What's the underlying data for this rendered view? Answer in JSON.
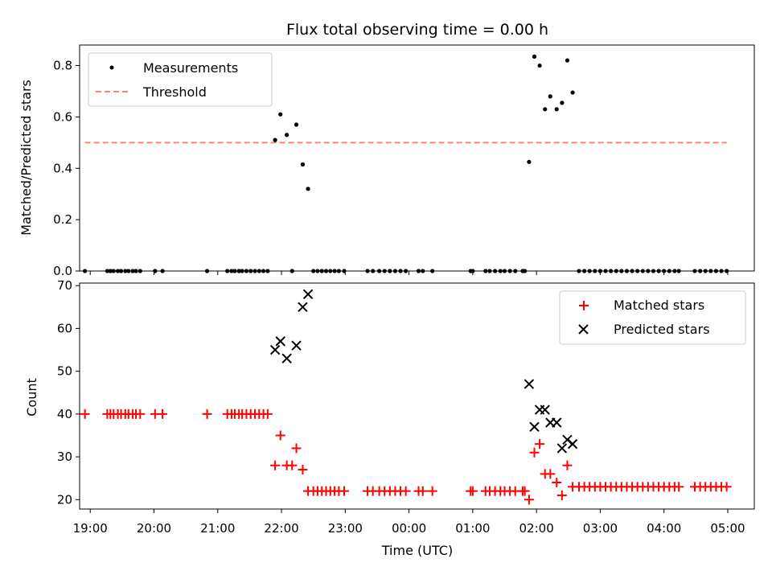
{
  "chart_data": [
    {
      "type": "scatter",
      "title": "Flux total observing time = 0.00 h",
      "ylabel": "Matched/Predicted stars",
      "xlim": [
        "18:50",
        "05:25"
      ],
      "ylim": [
        0.0,
        0.88
      ],
      "yticks": [
        "0.0",
        "0.2",
        "0.4",
        "0.6",
        "0.8"
      ],
      "legend_position": "top-left",
      "series": [
        {
          "name": "Measurements",
          "marker": "dot",
          "color": "#000000",
          "points": [
            [
              "18:55",
              0
            ],
            [
              "19:16",
              0
            ],
            [
              "19:19",
              0
            ],
            [
              "19:22",
              0
            ],
            [
              "19:26",
              0
            ],
            [
              "19:29",
              0
            ],
            [
              "19:33",
              0
            ],
            [
              "19:36",
              0
            ],
            [
              "19:40",
              0
            ],
            [
              "19:43",
              0
            ],
            [
              "19:47",
              0
            ],
            [
              "20:01",
              0
            ],
            [
              "20:08",
              0
            ],
            [
              "20:50",
              0
            ],
            [
              "21:09",
              0
            ],
            [
              "21:13",
              0
            ],
            [
              "21:16",
              0
            ],
            [
              "21:20",
              0
            ],
            [
              "21:23",
              0
            ],
            [
              "21:27",
              0
            ],
            [
              "21:31",
              0
            ],
            [
              "21:35",
              0
            ],
            [
              "21:39",
              0
            ],
            [
              "21:43",
              0
            ],
            [
              "21:47",
              0
            ],
            [
              "21:54",
              0.51
            ],
            [
              "21:59",
              0.61
            ],
            [
              "22:05",
              0.53
            ],
            [
              "22:10",
              0
            ],
            [
              "22:14",
              0.57
            ],
            [
              "22:20",
              0.415
            ],
            [
              "22:25",
              0.32
            ],
            [
              "22:30",
              0
            ],
            [
              "22:34",
              0
            ],
            [
              "22:38",
              0
            ],
            [
              "22:42",
              0
            ],
            [
              "22:46",
              0
            ],
            [
              "22:50",
              0
            ],
            [
              "22:54",
              0
            ],
            [
              "22:59",
              0
            ],
            [
              "23:21",
              0
            ],
            [
              "23:26",
              0
            ],
            [
              "23:32",
              0
            ],
            [
              "23:37",
              0
            ],
            [
              "23:42",
              0
            ],
            [
              "23:47",
              0
            ],
            [
              "23:52",
              0
            ],
            [
              "23:57",
              0
            ],
            [
              "00:09",
              0
            ],
            [
              "00:13",
              0
            ],
            [
              "00:22",
              0
            ],
            [
              "00:58",
              0
            ],
            [
              "01:00",
              0
            ],
            [
              "01:12",
              0
            ],
            [
              "01:16",
              0
            ],
            [
              "01:21",
              0
            ],
            [
              "01:26",
              0
            ],
            [
              "01:30",
              0
            ],
            [
              "01:35",
              0
            ],
            [
              "01:40",
              0
            ],
            [
              "01:47",
              0
            ],
            [
              "01:49",
              0
            ],
            [
              "01:53",
              0.425
            ],
            [
              "01:58",
              0.835
            ],
            [
              "02:03",
              0.8
            ],
            [
              "02:08",
              0.63
            ],
            [
              "02:13",
              0.68
            ],
            [
              "02:19",
              0.63
            ],
            [
              "02:24",
              0.655
            ],
            [
              "02:29",
              0.82
            ],
            [
              "02:34",
              0.695
            ],
            [
              "02:40",
              0
            ],
            [
              "02:45",
              0
            ],
            [
              "02:50",
              0
            ],
            [
              "02:55",
              0
            ],
            [
              "03:00",
              0
            ],
            [
              "03:05",
              0
            ],
            [
              "03:10",
              0
            ],
            [
              "03:15",
              0
            ],
            [
              "03:20",
              0
            ],
            [
              "03:25",
              0
            ],
            [
              "03:30",
              0
            ],
            [
              "03:35",
              0
            ],
            [
              "03:40",
              0
            ],
            [
              "03:45",
              0
            ],
            [
              "03:50",
              0
            ],
            [
              "03:55",
              0
            ],
            [
              "04:00",
              0
            ],
            [
              "04:05",
              0
            ],
            [
              "04:10",
              0
            ],
            [
              "04:14",
              0
            ],
            [
              "04:29",
              0
            ],
            [
              "04:34",
              0
            ],
            [
              "04:39",
              0
            ],
            [
              "04:44",
              0
            ],
            [
              "04:49",
              0
            ],
            [
              "04:54",
              0
            ],
            [
              "04:59",
              0
            ]
          ]
        },
        {
          "name": "Threshold",
          "marker": "dashed-line",
          "color": "#ff7f7f",
          "points": [
            [
              "18:55",
              0.5
            ],
            [
              "04:59",
              0.5
            ]
          ]
        }
      ]
    },
    {
      "type": "scatter",
      "xlabel": "Time (UTC)",
      "ylabel": "Count",
      "xlim": [
        "18:50",
        "05:25"
      ],
      "ylim": [
        17.8,
        70.6
      ],
      "yticks": [
        "20",
        "30",
        "40",
        "50",
        "60",
        "70"
      ],
      "xticks": [
        "19:00",
        "20:00",
        "21:00",
        "22:00",
        "23:00",
        "00:00",
        "01:00",
        "02:00",
        "03:00",
        "04:00",
        "05:00"
      ],
      "legend_position": "top-right",
      "series": [
        {
          "name": "Matched stars",
          "marker": "plus",
          "color": "#ff0000",
          "points": [
            [
              "18:55",
              40
            ],
            [
              "19:16",
              40
            ],
            [
              "19:19",
              40
            ],
            [
              "19:22",
              40
            ],
            [
              "19:26",
              40
            ],
            [
              "19:29",
              40
            ],
            [
              "19:33",
              40
            ],
            [
              "19:36",
              40
            ],
            [
              "19:40",
              40
            ],
            [
              "19:43",
              40
            ],
            [
              "19:47",
              40
            ],
            [
              "20:01",
              40
            ],
            [
              "20:08",
              40
            ],
            [
              "20:50",
              40
            ],
            [
              "21:09",
              40
            ],
            [
              "21:13",
              40
            ],
            [
              "21:16",
              40
            ],
            [
              "21:20",
              40
            ],
            [
              "21:23",
              40
            ],
            [
              "21:27",
              40
            ],
            [
              "21:31",
              40
            ],
            [
              "21:35",
              40
            ],
            [
              "21:39",
              40
            ],
            [
              "21:43",
              40
            ],
            [
              "21:47",
              40
            ],
            [
              "21:54",
              28
            ],
            [
              "21:59",
              35
            ],
            [
              "22:05",
              28
            ],
            [
              "22:10",
              28
            ],
            [
              "22:14",
              32
            ],
            [
              "22:20",
              27
            ],
            [
              "22:25",
              22
            ],
            [
              "22:30",
              22
            ],
            [
              "22:34",
              22
            ],
            [
              "22:38",
              22
            ],
            [
              "22:42",
              22
            ],
            [
              "22:46",
              22
            ],
            [
              "22:50",
              22
            ],
            [
              "22:54",
              22
            ],
            [
              "22:59",
              22
            ],
            [
              "23:21",
              22
            ],
            [
              "23:26",
              22
            ],
            [
              "23:32",
              22
            ],
            [
              "23:37",
              22
            ],
            [
              "23:42",
              22
            ],
            [
              "23:47",
              22
            ],
            [
              "23:52",
              22
            ],
            [
              "23:57",
              22
            ],
            [
              "00:09",
              22
            ],
            [
              "00:13",
              22
            ],
            [
              "00:22",
              22
            ],
            [
              "00:58",
              22
            ],
            [
              "01:00",
              22
            ],
            [
              "01:12",
              22
            ],
            [
              "01:16",
              22
            ],
            [
              "01:21",
              22
            ],
            [
              "01:26",
              22
            ],
            [
              "01:30",
              22
            ],
            [
              "01:35",
              22
            ],
            [
              "01:40",
              22
            ],
            [
              "01:47",
              22
            ],
            [
              "01:49",
              22
            ],
            [
              "01:53",
              20
            ],
            [
              "01:58",
              31
            ],
            [
              "02:03",
              33
            ],
            [
              "02:08",
              26
            ],
            [
              "02:13",
              26
            ],
            [
              "02:19",
              24
            ],
            [
              "02:24",
              21
            ],
            [
              "02:29",
              28
            ],
            [
              "02:34",
              23
            ],
            [
              "02:40",
              23
            ],
            [
              "02:45",
              23
            ],
            [
              "02:50",
              23
            ],
            [
              "02:55",
              23
            ],
            [
              "03:00",
              23
            ],
            [
              "03:05",
              23
            ],
            [
              "03:10",
              23
            ],
            [
              "03:15",
              23
            ],
            [
              "03:20",
              23
            ],
            [
              "03:25",
              23
            ],
            [
              "03:30",
              23
            ],
            [
              "03:35",
              23
            ],
            [
              "03:40",
              23
            ],
            [
              "03:45",
              23
            ],
            [
              "03:50",
              23
            ],
            [
              "03:55",
              23
            ],
            [
              "04:00",
              23
            ],
            [
              "04:05",
              23
            ],
            [
              "04:10",
              23
            ],
            [
              "04:14",
              23
            ],
            [
              "04:29",
              23
            ],
            [
              "04:34",
              23
            ],
            [
              "04:39",
              23
            ],
            [
              "04:44",
              23
            ],
            [
              "04:49",
              23
            ],
            [
              "04:54",
              23
            ],
            [
              "04:59",
              23
            ]
          ]
        },
        {
          "name": "Predicted stars",
          "marker": "x",
          "color": "#000000",
          "points": [
            [
              "21:54",
              55
            ],
            [
              "21:59",
              57
            ],
            [
              "22:05",
              53
            ],
            [
              "22:14",
              56
            ],
            [
              "22:20",
              65
            ],
            [
              "22:25",
              68
            ],
            [
              "01:53",
              47
            ],
            [
              "01:58",
              37
            ],
            [
              "02:03",
              41
            ],
            [
              "02:08",
              41
            ],
            [
              "02:13",
              38
            ],
            [
              "02:19",
              38
            ],
            [
              "02:24",
              32
            ],
            [
              "02:29",
              34
            ],
            [
              "02:34",
              33
            ]
          ]
        }
      ]
    }
  ]
}
